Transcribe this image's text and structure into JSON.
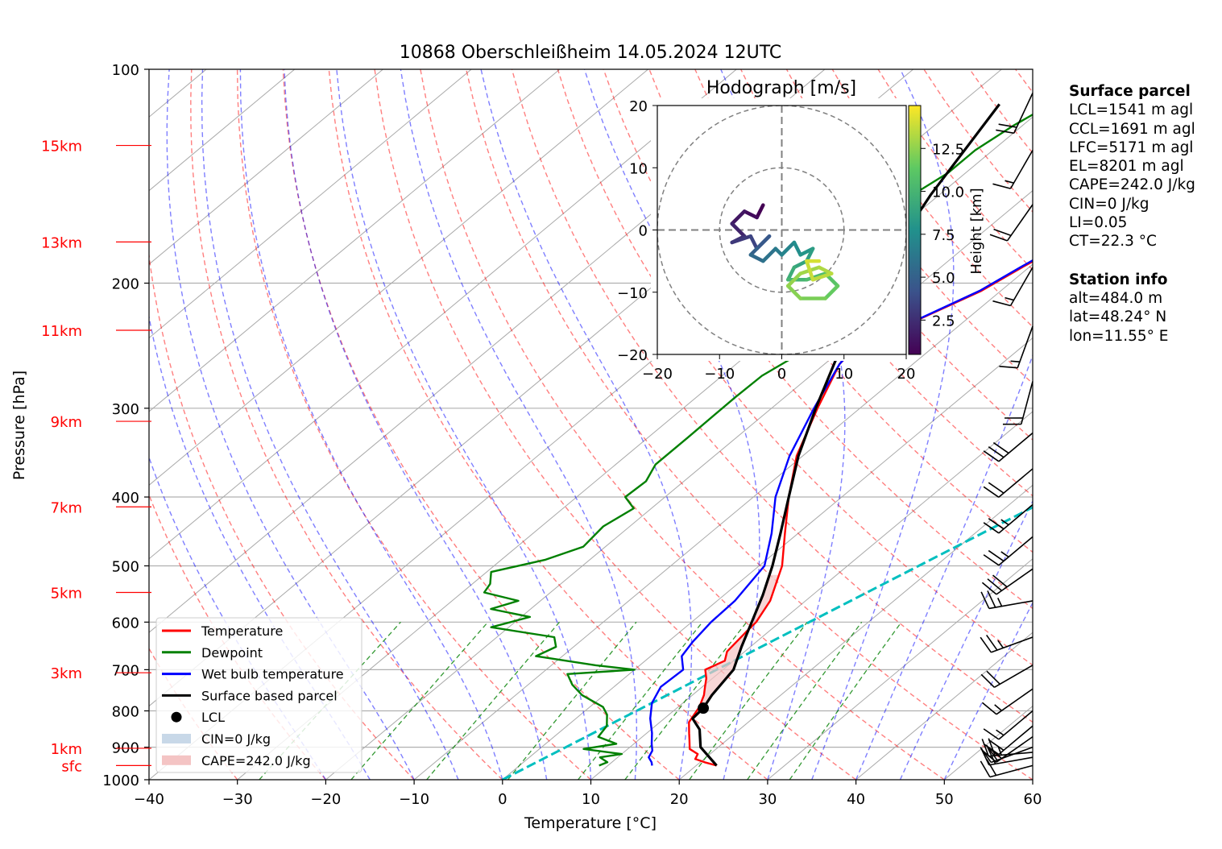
{
  "chart_data": {
    "type": "skew-t",
    "title": "10868 Oberschleißheim 14.05.2024 12UTC",
    "xlabel": "Temperature [°C]",
    "ylabel": "Pressure [hPa]",
    "xlim": [
      -40,
      60
    ],
    "ylim": [
      1000,
      100
    ],
    "xticks": [
      "−40",
      "−30",
      "−20",
      "−10",
      "0",
      "10",
      "20",
      "30",
      "40",
      "50",
      "60"
    ],
    "pressure_ticks": [
      {
        "p": 100,
        "label": "100"
      },
      {
        "p": 200,
        "label": "200"
      },
      {
        "p": 300,
        "label": "300"
      },
      {
        "p": 400,
        "label": "400"
      },
      {
        "p": 500,
        "label": "500"
      },
      {
        "p": 600,
        "label": "600"
      },
      {
        "p": 700,
        "label": "700"
      },
      {
        "p": 800,
        "label": "800"
      },
      {
        "p": 900,
        "label": "900"
      },
      {
        "p": 1000,
        "label": "1000"
      }
    ],
    "height_labels": [
      {
        "p": 955,
        "label": "sfc"
      },
      {
        "p": 903,
        "label": "1km"
      },
      {
        "p": 707,
        "label": "3km"
      },
      {
        "p": 545,
        "label": "5km"
      },
      {
        "p": 413,
        "label": "7km"
      },
      {
        "p": 313,
        "label": "9km"
      },
      {
        "p": 233,
        "label": "11km"
      },
      {
        "p": 175,
        "label": "13km"
      },
      {
        "p": 128,
        "label": "15km"
      }
    ],
    "series": [
      {
        "name": "Temperature",
        "color": "#ff0000",
        "points": [
          [
            955,
            22.3
          ],
          [
            945,
            20.5
          ],
          [
            935,
            19.0
          ],
          [
            920,
            18.6
          ],
          [
            905,
            17.0
          ],
          [
            880,
            15.8
          ],
          [
            860,
            14.8
          ],
          [
            830,
            13.3
          ],
          [
            790,
            12.4
          ],
          [
            760,
            11.3
          ],
          [
            740,
            10.3
          ],
          [
            720,
            9.3
          ],
          [
            700,
            8.0
          ],
          [
            680,
            9.0
          ],
          [
            660,
            8.0
          ],
          [
            620,
            7.5
          ],
          [
            600,
            7.3
          ],
          [
            560,
            6.0
          ],
          [
            500,
            2.6
          ],
          [
            450,
            -1.5
          ],
          [
            400,
            -6.0
          ],
          [
            350,
            -10.7
          ],
          [
            300,
            -14.8
          ],
          [
            260,
            -18.3
          ],
          [
            235,
            -19.2
          ],
          [
            225,
            -15.4
          ],
          [
            205,
            -12.2
          ],
          [
            190,
            -10.8
          ],
          [
            175,
            -9.0
          ],
          [
            160,
            -5.5
          ],
          [
            150,
            -3.0
          ],
          [
            140,
            0.6
          ],
          [
            133,
            1.9
          ],
          [
            125,
            3.0
          ],
          [
            115,
            4.5
          ],
          [
            106,
            5.7
          ]
        ]
      },
      {
        "name": "Dewpoint",
        "color": "#008000",
        "points": [
          [
            955,
            9.0
          ],
          [
            945,
            9.5
          ],
          [
            930,
            8.0
          ],
          [
            920,
            10.0
          ],
          [
            905,
            5.0
          ],
          [
            890,
            8.0
          ],
          [
            870,
            5.0
          ],
          [
            840,
            4.5
          ],
          [
            810,
            3.0
          ],
          [
            790,
            1.5
          ],
          [
            760,
            -2.5
          ],
          [
            735,
            -5.0
          ],
          [
            710,
            -7.0
          ],
          [
            700,
            0.0
          ],
          [
            690,
            -5.0
          ],
          [
            670,
            -13.0
          ],
          [
            650,
            -12.0
          ],
          [
            630,
            -13.5
          ],
          [
            610,
            -22.0
          ],
          [
            590,
            -19.0
          ],
          [
            575,
            -24.5
          ],
          [
            560,
            -22.5
          ],
          [
            545,
            -27.5
          ],
          [
            530,
            -28.0
          ],
          [
            510,
            -29.5
          ],
          [
            490,
            -25.0
          ],
          [
            470,
            -22.5
          ],
          [
            440,
            -23.0
          ],
          [
            415,
            -22.0
          ],
          [
            400,
            -24.5
          ],
          [
            380,
            -24.3
          ],
          [
            360,
            -25.5
          ],
          [
            330,
            -25.5
          ],
          [
            290,
            -25.6
          ],
          [
            270,
            -25.5
          ],
          [
            255,
            -24.5
          ],
          [
            240,
            -24.5
          ],
          [
            225,
            -23.4
          ],
          [
            205,
            -24.5
          ],
          [
            190,
            -26.0
          ],
          [
            175,
            -30.2
          ],
          [
            170,
            -27.0
          ],
          [
            165,
            -33.0
          ],
          [
            160,
            -32.5
          ],
          [
            150,
            -33.0
          ],
          [
            140,
            -32.0
          ],
          [
            130,
            -32.0
          ],
          [
            120,
            -31.0
          ],
          [
            111,
            -29.5
          ]
        ]
      },
      {
        "name": "Wet bulb temperature",
        "color": "#0000ff",
        "points": [
          [
            955,
            15.0
          ],
          [
            945,
            14.5
          ],
          [
            930,
            13.5
          ],
          [
            910,
            13.0
          ],
          [
            890,
            12.0
          ],
          [
            860,
            10.6
          ],
          [
            820,
            8.4
          ],
          [
            780,
            6.5
          ],
          [
            740,
            5.3
          ],
          [
            700,
            5.5
          ],
          [
            670,
            3.5
          ],
          [
            640,
            2.8
          ],
          [
            600,
            2.2
          ],
          [
            560,
            2.0
          ],
          [
            500,
            0.6
          ],
          [
            450,
            -3.0
          ],
          [
            400,
            -7.5
          ],
          [
            350,
            -11.5
          ],
          [
            300,
            -15.2
          ],
          [
            260,
            -18.3
          ],
          [
            235,
            -19.3
          ],
          [
            225,
            -15.5
          ],
          [
            205,
            -12.4
          ],
          [
            190,
            -11.0
          ],
          [
            175,
            -9.3
          ],
          [
            160,
            -6.0
          ],
          [
            150,
            -3.5
          ],
          [
            140,
            0.0
          ],
          [
            133,
            1.5
          ],
          [
            125,
            2.5
          ],
          [
            115,
            4.0
          ],
          [
            106,
            5.3
          ]
        ]
      },
      {
        "name": "Surface based parcel",
        "color": "#000000",
        "points": [
          [
            955,
            22.3
          ],
          [
            900,
            18.0
          ],
          [
            850,
            15.5
          ],
          [
            820,
            13.2
          ],
          [
            793,
            13.0
          ],
          [
            760,
            12.2
          ],
          [
            700,
            11.2
          ],
          [
            650,
            9.0
          ],
          [
            600,
            6.8
          ],
          [
            550,
            4.4
          ],
          [
            500,
            1.5
          ],
          [
            450,
            -2.0
          ],
          [
            400,
            -6.0
          ],
          [
            350,
            -10.5
          ],
          [
            300,
            -15.0
          ],
          [
            250,
            -20.0
          ],
          [
            200,
            -25.6
          ],
          [
            150,
            -31.0
          ],
          [
            112,
            -35.5
          ]
        ]
      }
    ],
    "lcl": {
      "label": "LCL",
      "p": 793,
      "t": 13.0
    },
    "legend": {
      "placement": "lower-left",
      "entries": [
        "Temperature",
        "Dewpoint",
        "Wet bulb temperature",
        "Surface based parcel",
        "LCL",
        "CIN=0 J/kg",
        "CAPE=242.0 J/kg"
      ]
    },
    "hodograph": {
      "title": "Hodograph [m/s]",
      "xlim": [
        -20,
        20
      ],
      "ylim": [
        -20,
        20
      ],
      "ticks": [
        "−20",
        "−10",
        "0",
        "10",
        "20"
      ],
      "colorbar_label": "Height [km]",
      "colorbar_ticks": [
        "2.5",
        "5.0",
        "7.5",
        "10.0",
        "12.5"
      ],
      "colorbar_range": [
        0.5,
        15
      ],
      "rings": [
        10,
        20
      ],
      "points": [
        [
          -3,
          4,
          0.5
        ],
        [
          -4,
          2,
          1.0
        ],
        [
          -6,
          3,
          1.5
        ],
        [
          -8,
          1,
          2.0
        ],
        [
          -6,
          -1,
          2.5
        ],
        [
          -8,
          -2,
          3.0
        ],
        [
          -5,
          -1,
          3.5
        ],
        [
          -4,
          -3,
          4.0
        ],
        [
          -2,
          -1,
          4.5
        ],
        [
          -4,
          -3,
          5.0
        ],
        [
          -5,
          -4,
          5.5
        ],
        [
          -3,
          -5,
          6.0
        ],
        [
          -1,
          -3,
          6.5
        ],
        [
          0,
          -4,
          7.0
        ],
        [
          2,
          -2,
          7.5
        ],
        [
          3,
          -4,
          8.0
        ],
        [
          5,
          -3,
          8.5
        ],
        [
          4,
          -5,
          9.0
        ],
        [
          2,
          -6,
          9.5
        ],
        [
          1,
          -8,
          10.0
        ],
        [
          4,
          -8,
          10.5
        ],
        [
          7,
          -7,
          11.0
        ],
        [
          9,
          -9,
          11.5
        ],
        [
          7,
          -11,
          12.0
        ],
        [
          3,
          -11,
          12.3
        ],
        [
          1,
          -9,
          12.6
        ],
        [
          3,
          -7,
          12.9
        ],
        [
          6,
          -6,
          13.2
        ],
        [
          8,
          -7,
          13.5
        ],
        [
          5,
          -8,
          13.8
        ],
        [
          4,
          -5,
          14.1
        ],
        [
          6,
          -5,
          14.4
        ]
      ]
    },
    "wind_barbs": [
      {
        "p": 955,
        "dir": 255,
        "spd": 18
      },
      {
        "p": 930,
        "dir": 260,
        "spd": 22
      },
      {
        "p": 915,
        "dir": 265,
        "spd": 25
      },
      {
        "p": 900,
        "dir": 250,
        "spd": 22
      },
      {
        "p": 870,
        "dir": 235,
        "spd": 20
      },
      {
        "p": 840,
        "dir": 230,
        "spd": 18
      },
      {
        "p": 800,
        "dir": 230,
        "spd": 16
      },
      {
        "p": 745,
        "dir": 235,
        "spd": 14
      },
      {
        "p": 690,
        "dir": 240,
        "spd": 22
      },
      {
        "p": 630,
        "dir": 250,
        "spd": 24
      },
      {
        "p": 560,
        "dir": 260,
        "spd": 26
      },
      {
        "p": 505,
        "dir": 235,
        "spd": 28
      },
      {
        "p": 455,
        "dir": 230,
        "spd": 26
      },
      {
        "p": 410,
        "dir": 230,
        "spd": 24
      },
      {
        "p": 365,
        "dir": 230,
        "spd": 22
      },
      {
        "p": 325,
        "dir": 230,
        "spd": 30
      },
      {
        "p": 275,
        "dir": 195,
        "spd": 20
      },
      {
        "p": 230,
        "dir": 200,
        "spd": 15
      },
      {
        "p": 190,
        "dir": 210,
        "spd": 14
      },
      {
        "p": 155,
        "dir": 215,
        "spd": 20
      },
      {
        "p": 130,
        "dir": 210,
        "spd": 15
      },
      {
        "p": 108,
        "dir": 205,
        "spd": 18
      }
    ]
  },
  "info": {
    "surface_title": "Surface parcel",
    "surface_lines": [
      "LCL=1541 m agl",
      "CCL=1691 m agl",
      "LFC=5171 m agl",
      "EL=8201 m agl",
      "CAPE=242.0 J/kg",
      "CIN=0 J/kg",
      "LI=0.05",
      "CT=22.3 °C"
    ],
    "station_title": "Station info",
    "station_lines": [
      "alt=484.0 m",
      "lat=48.24° N",
      "lon=11.55° E"
    ]
  },
  "colors": {
    "temperature": "#ff0000",
    "dewpoint": "#008000",
    "wetbulb": "#0000ff",
    "parcel": "#000000",
    "ccl_line": "#00bfbf",
    "cape_fill": "#f4c4c4",
    "cin_fill": "#c8d8e8"
  }
}
